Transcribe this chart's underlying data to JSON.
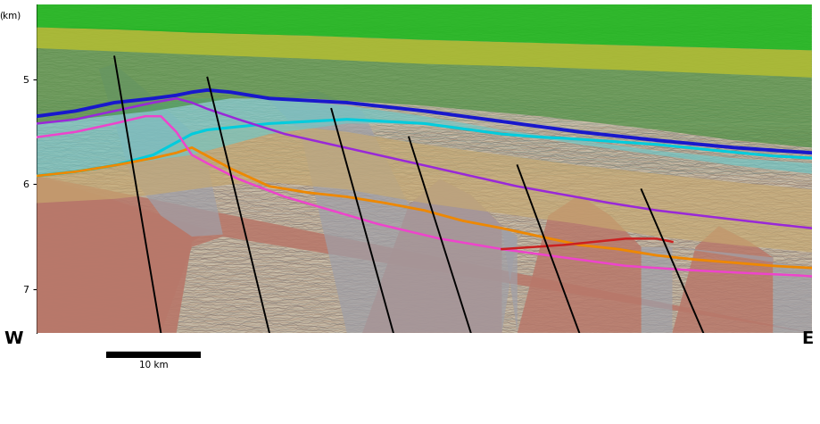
{
  "ylabel": "(km)",
  "yticks": [
    5,
    6,
    7
  ],
  "xlim": [
    0,
    100
  ],
  "ylim": [
    7.42,
    4.28
  ],
  "west_label": "W",
  "east_label": "E",
  "scale_bar_label": "10 km",
  "seismic_bg": "#c8bca8",
  "seismic_dark": "#8a7e6e",
  "seismic_light": "#e0d8c8",
  "basement_color": "#b8786a",
  "rift_gray": "#a0a0a8",
  "green_color": "#4a9040",
  "cyan_color": "#70c8c8",
  "yellow_green": "#a8c040",
  "blue_line": "#1818cc",
  "cyan_line": "#00ccdd",
  "orange_line": "#ee8800",
  "pink_line": "#ee44cc",
  "purple_line": "#9928d8",
  "red_line": "#cc2020"
}
